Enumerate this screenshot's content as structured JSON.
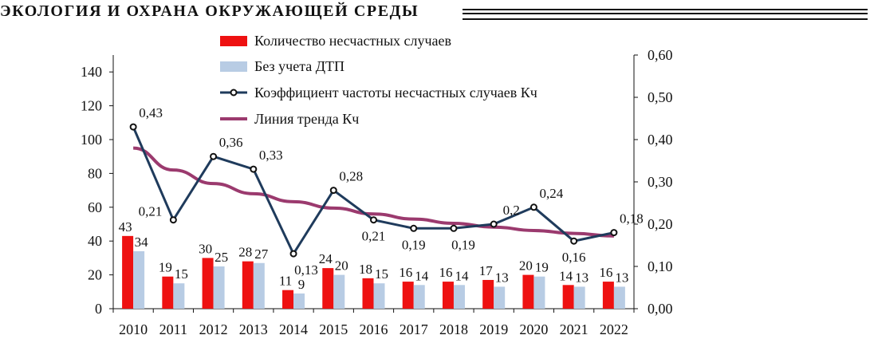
{
  "header": {
    "section_title": "ЭКОЛОГИЯ И ОХРАНА ОКРУЖАЮЩЕЙ СРЕДЫ"
  },
  "chart_data": {
    "type": "bar",
    "categories": [
      "2010",
      "2011",
      "2012",
      "2013",
      "2014",
      "2015",
      "2016",
      "2017",
      "2018",
      "2019",
      "2020",
      "2021",
      "2022"
    ],
    "series": [
      {
        "name": "Количество несчастных случаев",
        "kind": "bar",
        "axis": "left",
        "color": "#ee1111",
        "values": [
          43,
          19,
          30,
          28,
          11,
          24,
          18,
          16,
          16,
          17,
          20,
          14,
          16
        ],
        "labels": [
          "43",
          "19",
          "30",
          "28",
          "11",
          "24",
          "18",
          "16",
          "16",
          "17",
          "20",
          "14",
          "16"
        ]
      },
      {
        "name": "Без учета ДТП",
        "kind": "bar",
        "axis": "left",
        "color": "#b8cce4",
        "values": [
          34,
          15,
          25,
          27,
          9,
          20,
          15,
          14,
          14,
          13,
          19,
          13,
          13
        ],
        "labels": [
          "34",
          "15",
          "25",
          "27",
          "9",
          "20",
          "15",
          "14",
          "14",
          "13",
          "19",
          "13",
          "13"
        ]
      },
      {
        "name": "Коэффициент частоты несчастных случаев Кч",
        "kind": "line",
        "axis": "right",
        "color": "#1f3b5c",
        "values": [
          0.43,
          0.21,
          0.36,
          0.33,
          0.13,
          0.28,
          0.21,
          0.19,
          0.19,
          0.2,
          0.24,
          0.16,
          0.18
        ],
        "labels": [
          "0,43",
          "0,21",
          "0,36",
          "0,33",
          "0,13",
          "0,28",
          "0,21",
          "0,19",
          "0,19",
          "0,2",
          "0,24",
          "0,16",
          "0,18"
        ]
      },
      {
        "name": "Линия тренда Кч",
        "kind": "trend",
        "axis": "right",
        "color": "#9b3a6e",
        "values": [
          0.38,
          0.328,
          0.296,
          0.272,
          0.253,
          0.238,
          0.224,
          0.212,
          0.202,
          0.193,
          0.185,
          0.178,
          0.172
        ]
      }
    ],
    "y_left": {
      "min": 0,
      "max": 150,
      "ticks": [
        "0",
        "20",
        "40",
        "60",
        "80",
        "100",
        "120",
        "140"
      ]
    },
    "y_right": {
      "min": 0,
      "max": 0.6,
      "ticks": [
        "0,00",
        "0,10",
        "0,20",
        "0,30",
        "0,40",
        "0,50",
        "0,60"
      ]
    },
    "legend_position": "top",
    "grid": false
  }
}
